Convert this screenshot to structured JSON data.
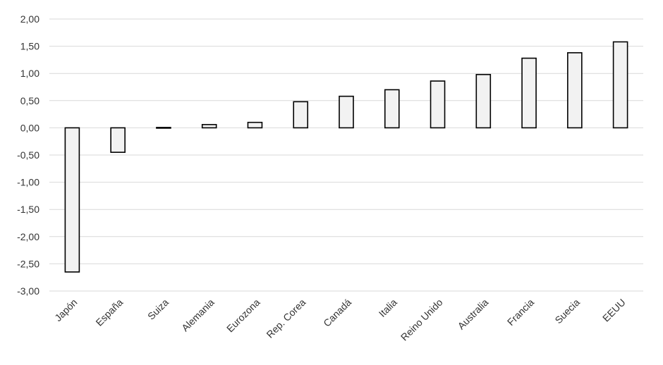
{
  "chart_data": {
    "type": "bar",
    "categories": [
      "Japón",
      "España",
      "Suiza",
      "Alemania",
      "Eurozona",
      "Rep. Corea",
      "Canadá",
      "Italia",
      "Reino Unido",
      "Australia",
      "Francia",
      "Suecia",
      "EEUU"
    ],
    "values": [
      -2.65,
      -0.45,
      -0.01,
      0.06,
      0.1,
      0.48,
      0.58,
      0.7,
      0.86,
      0.98,
      1.28,
      1.38,
      1.58
    ],
    "ylim": [
      -3.0,
      2.0
    ],
    "yticks": [
      "2,00",
      "1,50",
      "1,00",
      "0,50",
      "0,00",
      "-0,50",
      "-1,00",
      "-1,50",
      "-2,00",
      "-2,50",
      "-3,00"
    ],
    "ytick_values": [
      2.0,
      1.5,
      1.0,
      0.5,
      0.0,
      -0.5,
      -1.0,
      -1.5,
      -2.0,
      -2.5,
      -3.0
    ],
    "grid": true,
    "legend": "none",
    "colors": {
      "bar_fill": "#f2f2f2",
      "bar_stroke": "#000000",
      "grid": "#d9d9d9"
    }
  }
}
